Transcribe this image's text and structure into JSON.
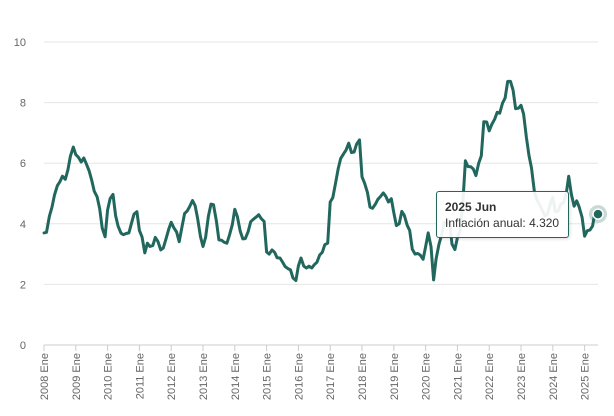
{
  "chart_data": {
    "type": "line",
    "title": "",
    "xlabel": "",
    "ylabel": "",
    "ylim": [
      0,
      10
    ],
    "yticks": [
      0,
      2,
      4,
      6,
      8,
      10
    ],
    "xlim": [
      2008.0,
      2025.42
    ],
    "xticks": [
      {
        "x": 2008,
        "label": "2008 Ene"
      },
      {
        "x": 2009,
        "label": "2009 Ene"
      },
      {
        "x": 2010,
        "label": "2010 Ene"
      },
      {
        "x": 2011,
        "label": "2011 Ene"
      },
      {
        "x": 2012,
        "label": "2012 Ene"
      },
      {
        "x": 2013,
        "label": "2013 Ene"
      },
      {
        "x": 2014,
        "label": "2014 Ene"
      },
      {
        "x": 2015,
        "label": "2015 Ene"
      },
      {
        "x": 2016,
        "label": "2016 Ene"
      },
      {
        "x": 2017,
        "label": "2017 Ene"
      },
      {
        "x": 2018,
        "label": "2018 Ene"
      },
      {
        "x": 2019,
        "label": "2019 Ene"
      },
      {
        "x": 2020,
        "label": "2020 Ene"
      },
      {
        "x": 2021,
        "label": "2021 Ene"
      },
      {
        "x": 2022,
        "label": "2022 Ene"
      },
      {
        "x": 2023,
        "label": "2023 Ene"
      },
      {
        "x": 2024,
        "label": "2024 Ene"
      },
      {
        "x": 2025,
        "label": "2025 Ene"
      }
    ],
    "grid": true,
    "line_color": "#22675d",
    "series": [
      {
        "name": "Inflación anual",
        "points": [
          [
            2008.0,
            3.7
          ],
          [
            2008.08,
            3.72
          ],
          [
            2008.17,
            4.25
          ],
          [
            2008.25,
            4.55
          ],
          [
            2008.33,
            4.95
          ],
          [
            2008.42,
            5.26
          ],
          [
            2008.5,
            5.39
          ],
          [
            2008.58,
            5.57
          ],
          [
            2008.67,
            5.47
          ],
          [
            2008.75,
            5.78
          ],
          [
            2008.83,
            6.23
          ],
          [
            2008.92,
            6.53
          ],
          [
            2009.0,
            6.28
          ],
          [
            2009.08,
            6.2
          ],
          [
            2009.17,
            6.04
          ],
          [
            2009.25,
            6.17
          ],
          [
            2009.33,
            5.98
          ],
          [
            2009.42,
            5.74
          ],
          [
            2009.5,
            5.44
          ],
          [
            2009.58,
            5.08
          ],
          [
            2009.67,
            4.89
          ],
          [
            2009.75,
            4.5
          ],
          [
            2009.83,
            3.86
          ],
          [
            2009.92,
            3.57
          ],
          [
            2010.0,
            4.46
          ],
          [
            2010.08,
            4.83
          ],
          [
            2010.17,
            4.97
          ],
          [
            2010.25,
            4.27
          ],
          [
            2010.33,
            3.92
          ],
          [
            2010.42,
            3.69
          ],
          [
            2010.5,
            3.64
          ],
          [
            2010.58,
            3.68
          ],
          [
            2010.67,
            3.7
          ],
          [
            2010.75,
            4.02
          ],
          [
            2010.83,
            4.32
          ],
          [
            2010.92,
            4.4
          ],
          [
            2011.0,
            3.78
          ],
          [
            2011.08,
            3.57
          ],
          [
            2011.17,
            3.04
          ],
          [
            2011.25,
            3.36
          ],
          [
            2011.33,
            3.25
          ],
          [
            2011.42,
            3.28
          ],
          [
            2011.5,
            3.55
          ],
          [
            2011.58,
            3.42
          ],
          [
            2011.67,
            3.14
          ],
          [
            2011.75,
            3.2
          ],
          [
            2011.83,
            3.48
          ],
          [
            2011.92,
            3.82
          ],
          [
            2012.0,
            4.05
          ],
          [
            2012.08,
            3.87
          ],
          [
            2012.17,
            3.73
          ],
          [
            2012.25,
            3.41
          ],
          [
            2012.33,
            3.85
          ],
          [
            2012.42,
            4.34
          ],
          [
            2012.5,
            4.42
          ],
          [
            2012.58,
            4.57
          ],
          [
            2012.67,
            4.77
          ],
          [
            2012.75,
            4.6
          ],
          [
            2012.83,
            4.18
          ],
          [
            2012.92,
            3.57
          ],
          [
            2013.0,
            3.25
          ],
          [
            2013.08,
            3.55
          ],
          [
            2013.17,
            4.25
          ],
          [
            2013.25,
            4.65
          ],
          [
            2013.33,
            4.63
          ],
          [
            2013.42,
            4.09
          ],
          [
            2013.5,
            3.47
          ],
          [
            2013.58,
            3.46
          ],
          [
            2013.67,
            3.39
          ],
          [
            2013.75,
            3.36
          ],
          [
            2013.83,
            3.62
          ],
          [
            2013.92,
            3.97
          ],
          [
            2014.0,
            4.48
          ],
          [
            2014.08,
            4.23
          ],
          [
            2014.17,
            3.76
          ],
          [
            2014.25,
            3.5
          ],
          [
            2014.33,
            3.51
          ],
          [
            2014.42,
            3.75
          ],
          [
            2014.5,
            4.07
          ],
          [
            2014.58,
            4.15
          ],
          [
            2014.67,
            4.22
          ],
          [
            2014.75,
            4.3
          ],
          [
            2014.83,
            4.17
          ],
          [
            2014.92,
            4.08
          ],
          [
            2015.0,
            3.07
          ],
          [
            2015.08,
            3.0
          ],
          [
            2015.17,
            3.14
          ],
          [
            2015.25,
            3.06
          ],
          [
            2015.33,
            2.88
          ],
          [
            2015.42,
            2.87
          ],
          [
            2015.5,
            2.74
          ],
          [
            2015.58,
            2.59
          ],
          [
            2015.67,
            2.52
          ],
          [
            2015.75,
            2.48
          ],
          [
            2015.83,
            2.21
          ],
          [
            2015.92,
            2.13
          ],
          [
            2016.0,
            2.61
          ],
          [
            2016.08,
            2.87
          ],
          [
            2016.17,
            2.6
          ],
          [
            2016.25,
            2.54
          ],
          [
            2016.33,
            2.6
          ],
          [
            2016.42,
            2.54
          ],
          [
            2016.5,
            2.65
          ],
          [
            2016.58,
            2.73
          ],
          [
            2016.67,
            2.97
          ],
          [
            2016.75,
            3.06
          ],
          [
            2016.83,
            3.31
          ],
          [
            2016.92,
            3.36
          ],
          [
            2017.0,
            4.72
          ],
          [
            2017.08,
            4.86
          ],
          [
            2017.17,
            5.35
          ],
          [
            2017.25,
            5.82
          ],
          [
            2017.33,
            6.16
          ],
          [
            2017.42,
            6.31
          ],
          [
            2017.5,
            6.44
          ],
          [
            2017.58,
            6.66
          ],
          [
            2017.67,
            6.35
          ],
          [
            2017.75,
            6.37
          ],
          [
            2017.83,
            6.63
          ],
          [
            2017.92,
            6.77
          ],
          [
            2018.0,
            5.55
          ],
          [
            2018.08,
            5.34
          ],
          [
            2018.17,
            5.04
          ],
          [
            2018.25,
            4.55
          ],
          [
            2018.33,
            4.51
          ],
          [
            2018.42,
            4.65
          ],
          [
            2018.5,
            4.81
          ],
          [
            2018.58,
            4.9
          ],
          [
            2018.67,
            5.02
          ],
          [
            2018.75,
            4.9
          ],
          [
            2018.83,
            4.72
          ],
          [
            2018.92,
            4.83
          ],
          [
            2019.0,
            4.37
          ],
          [
            2019.08,
            3.94
          ],
          [
            2019.17,
            4.0
          ],
          [
            2019.25,
            4.41
          ],
          [
            2019.33,
            4.28
          ],
          [
            2019.42,
            3.95
          ],
          [
            2019.5,
            3.78
          ],
          [
            2019.58,
            3.16
          ],
          [
            2019.67,
            3.0
          ],
          [
            2019.75,
            3.02
          ],
          [
            2019.83,
            2.97
          ],
          [
            2019.92,
            2.83
          ],
          [
            2020.0,
            3.24
          ],
          [
            2020.08,
            3.7
          ],
          [
            2020.17,
            3.25
          ],
          [
            2020.25,
            2.15
          ],
          [
            2020.33,
            2.84
          ],
          [
            2020.42,
            3.33
          ],
          [
            2020.5,
            3.62
          ],
          [
            2020.58,
            4.05
          ],
          [
            2020.67,
            4.01
          ],
          [
            2020.75,
            4.09
          ],
          [
            2020.83,
            3.33
          ],
          [
            2020.92,
            3.15
          ],
          [
            2021.0,
            3.54
          ],
          [
            2021.08,
            3.76
          ],
          [
            2021.17,
            4.67
          ],
          [
            2021.25,
            6.08
          ],
          [
            2021.33,
            5.89
          ],
          [
            2021.42,
            5.88
          ],
          [
            2021.5,
            5.81
          ],
          [
            2021.58,
            5.59
          ],
          [
            2021.67,
            6.0
          ],
          [
            2021.75,
            6.24
          ],
          [
            2021.83,
            7.37
          ],
          [
            2021.92,
            7.36
          ],
          [
            2022.0,
            7.07
          ],
          [
            2022.08,
            7.28
          ],
          [
            2022.17,
            7.45
          ],
          [
            2022.25,
            7.68
          ],
          [
            2022.33,
            7.65
          ],
          [
            2022.42,
            7.99
          ],
          [
            2022.5,
            8.15
          ],
          [
            2022.58,
            8.7
          ],
          [
            2022.67,
            8.7
          ],
          [
            2022.75,
            8.41
          ],
          [
            2022.83,
            7.8
          ],
          [
            2022.92,
            7.82
          ],
          [
            2023.0,
            7.91
          ],
          [
            2023.08,
            7.62
          ],
          [
            2023.17,
            6.85
          ],
          [
            2023.25,
            6.25
          ],
          [
            2023.33,
            5.84
          ],
          [
            2023.42,
            5.06
          ],
          [
            2023.5,
            4.79
          ],
          [
            2023.58,
            4.64
          ],
          [
            2023.67,
            4.45
          ],
          [
            2023.75,
            4.26
          ],
          [
            2023.83,
            4.32
          ],
          [
            2023.92,
            4.66
          ],
          [
            2024.0,
            4.88
          ],
          [
            2024.08,
            4.4
          ],
          [
            2024.17,
            4.42
          ],
          [
            2024.25,
            4.65
          ],
          [
            2024.33,
            4.69
          ],
          [
            2024.42,
            4.98
          ],
          [
            2024.5,
            5.57
          ],
          [
            2024.58,
            4.99
          ],
          [
            2024.67,
            4.58
          ],
          [
            2024.75,
            4.76
          ],
          [
            2024.83,
            4.55
          ],
          [
            2024.92,
            4.21
          ],
          [
            2025.0,
            3.59
          ],
          [
            2025.08,
            3.77
          ],
          [
            2025.17,
            3.8
          ],
          [
            2025.25,
            3.93
          ],
          [
            2025.33,
            4.42
          ],
          [
            2025.42,
            4.32
          ]
        ]
      }
    ]
  },
  "tooltip": {
    "title": "2025 Jun",
    "series_label": "Inflación anual",
    "value": "4.320",
    "x": 2025.42
  }
}
